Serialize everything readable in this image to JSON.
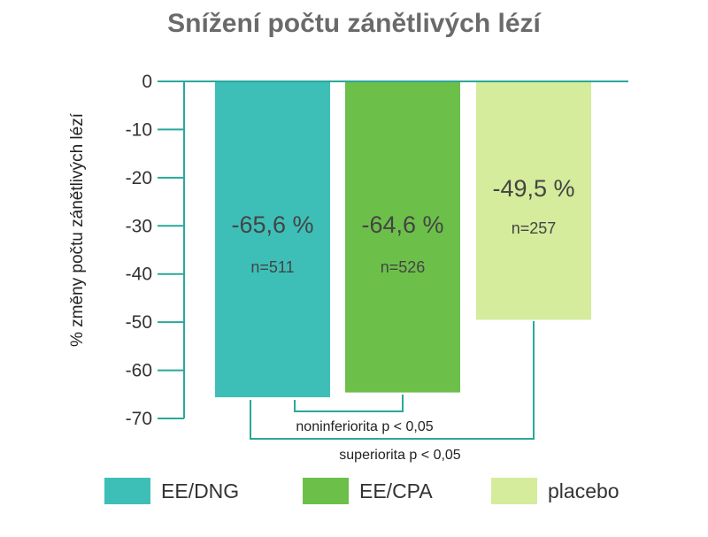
{
  "chart_data": {
    "type": "bar",
    "title": "Snížení počtu zánětlivých lézí",
    "ylabel": "% změny počtu zánětlivých lézí",
    "ylim": [
      -70,
      0
    ],
    "yticks": [
      0,
      -10,
      -20,
      -30,
      -40,
      -50,
      -60,
      -70
    ],
    "categories": [
      "EE/DNG",
      "EE/CPA",
      "placebo"
    ],
    "values": [
      -65.6,
      -64.6,
      -49.5
    ],
    "value_labels": [
      "-65,6 %",
      "-64,6 %",
      "-49,5 %"
    ],
    "n_labels": [
      "n=511",
      "n=526",
      "n=257"
    ],
    "colors": [
      "#3dbfb8",
      "#6cc04a",
      "#d4ec9c"
    ],
    "annotations": [
      "noninferiorita p < 0,05",
      "superiorita p < 0,05"
    ],
    "legend": [
      "EE/DNG",
      "EE/CPA",
      "placebo"
    ],
    "axis_color": "#2aa89a"
  }
}
